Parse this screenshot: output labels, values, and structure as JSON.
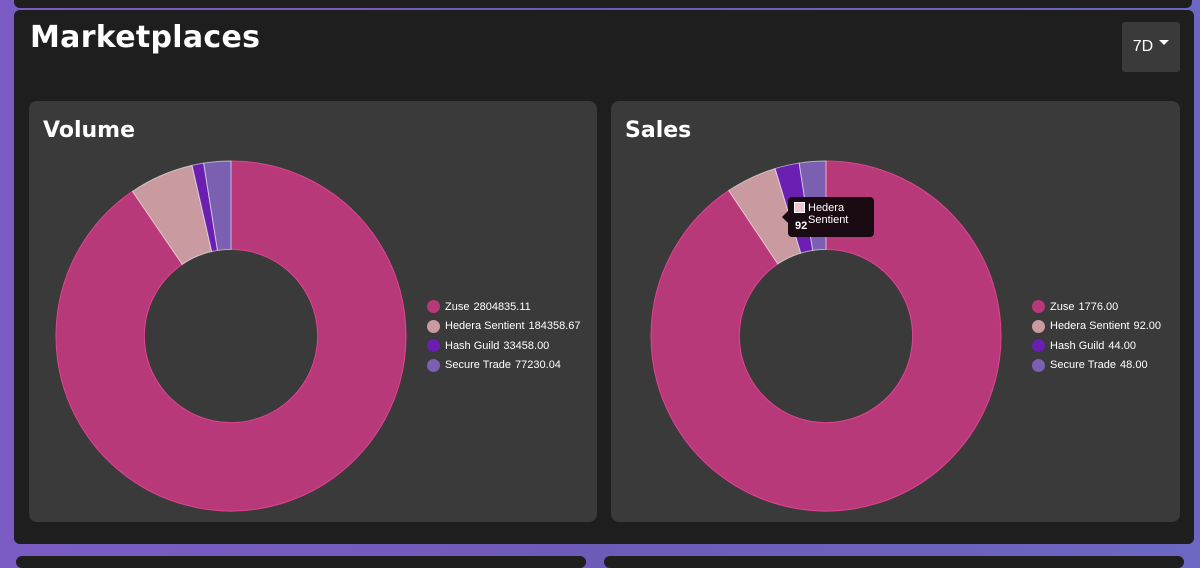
{
  "page": {
    "title": "Marketplaces",
    "period_label": "7D"
  },
  "colors": {
    "Zuse": "#b8397a",
    "Hedera Sentient": "#c99aa0",
    "Hash Guild": "#6a1fb0",
    "Secure Trade": "#7b5fb0",
    "tooltip_swatch": "#f2c4cf"
  },
  "chart_data": [
    {
      "type": "pie",
      "title": "Volume",
      "donut": true,
      "legend_position": "right",
      "categories": [
        "Zuse",
        "Hedera Sentient",
        "Hash Guild",
        "Secure Trade"
      ],
      "values": [
        2804835.11,
        184358.67,
        33458.0,
        77230.04
      ],
      "value_labels": [
        "2804835.11",
        "184358.67",
        "33458.00",
        "77230.04"
      ]
    },
    {
      "type": "pie",
      "title": "Sales",
      "donut": true,
      "legend_position": "right",
      "categories": [
        "Zuse",
        "Hedera Sentient",
        "Hash Guild",
        "Secure Trade"
      ],
      "values": [
        1776.0,
        92.0,
        44.0,
        48.0
      ],
      "value_labels": [
        "1776.00",
        "92.00",
        "44.00",
        "48.00"
      ],
      "tooltip": {
        "label": "Hedera Sentient",
        "value": "92",
        "category_index": 1
      }
    }
  ]
}
